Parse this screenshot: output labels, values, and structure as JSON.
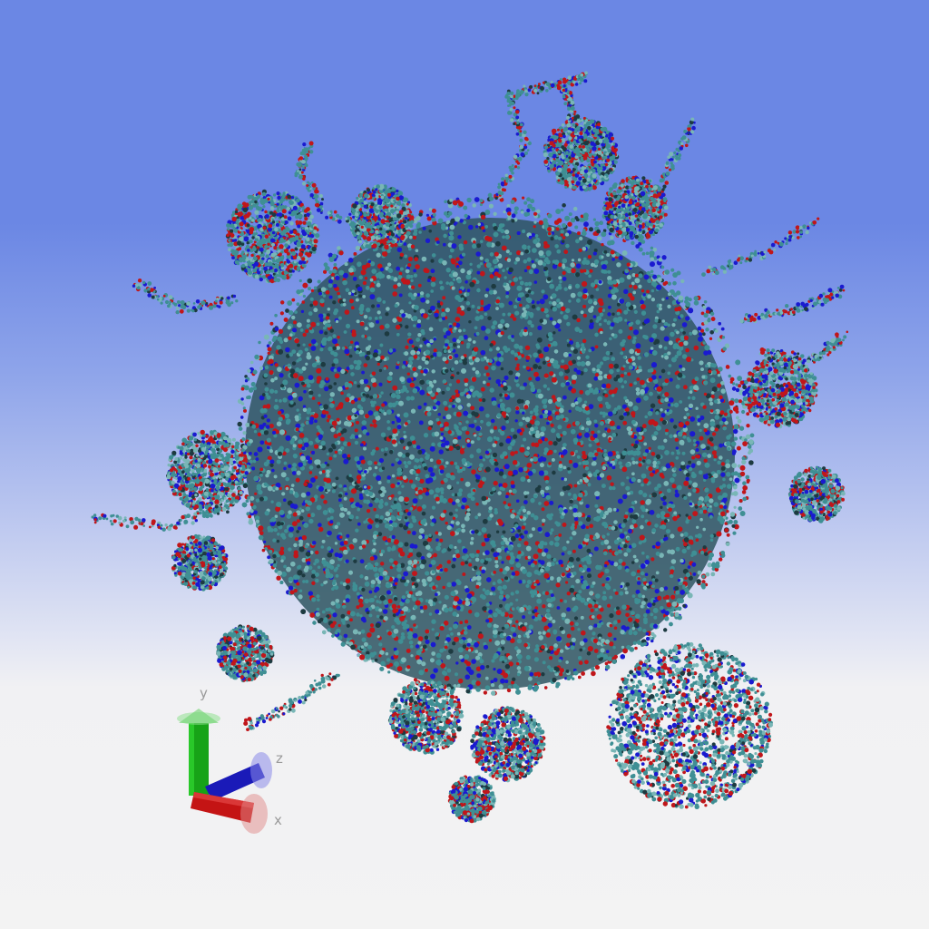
{
  "scene": {
    "subject": "molecular-structure-atoms",
    "background_top": "#6b87e4",
    "background_bottom": "#f3f3f3",
    "atom_colors": {
      "carbon": "#3f8f94",
      "carbon_light": "#79b6b6",
      "oxygen": "#c0161a",
      "nitrogen": "#1a1ad0",
      "dark": "#1d3a40"
    }
  },
  "axes": {
    "x_label": "x",
    "y_label": "y",
    "z_label": "z",
    "x_color": "#cc1111",
    "y_color": "#11aa11",
    "z_color": "#1111cc"
  }
}
